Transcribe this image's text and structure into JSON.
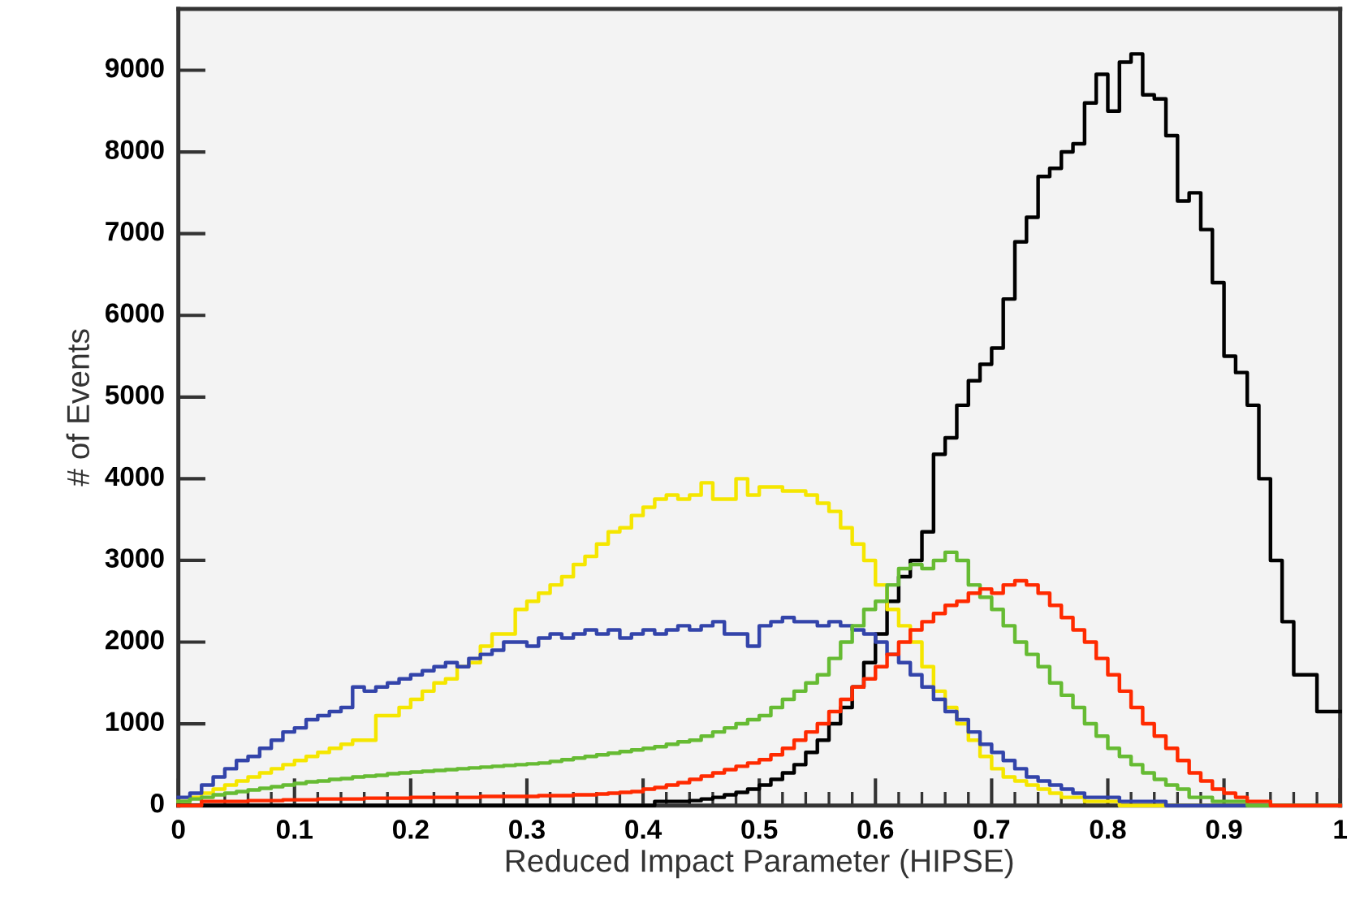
{
  "chart_data": {
    "type": "histogram",
    "xlabel": "Reduced Impact Parameter (HIPSE)",
    "ylabel": "# of Events",
    "bins": [
      0,
      0.01,
      0.02,
      0.03,
      0.04,
      0.05,
      0.06,
      0.07,
      0.08,
      0.09,
      0.1,
      0.11,
      0.12,
      0.13,
      0.14,
      0.15,
      0.16,
      0.17,
      0.18,
      0.19,
      0.2,
      0.21,
      0.22,
      0.23,
      0.24,
      0.25,
      0.26,
      0.27,
      0.28,
      0.29,
      0.3,
      0.31,
      0.32,
      0.33,
      0.34,
      0.35,
      0.36,
      0.37,
      0.38,
      0.39,
      0.4,
      0.41,
      0.42,
      0.43,
      0.44,
      0.45,
      0.46,
      0.47,
      0.48,
      0.49,
      0.5,
      0.51,
      0.52,
      0.53,
      0.54,
      0.55,
      0.56,
      0.57,
      0.58,
      0.59,
      0.6,
      0.61,
      0.62,
      0.63,
      0.64,
      0.65,
      0.66,
      0.67,
      0.68,
      0.69,
      0.7,
      0.71,
      0.72,
      0.73,
      0.74,
      0.75,
      0.76,
      0.77,
      0.78,
      0.79,
      0.8,
      0.81,
      0.82,
      0.83,
      0.84,
      0.85,
      0.86,
      0.87,
      0.88,
      0.89,
      0.9,
      0.91,
      0.92,
      0.93,
      0.94,
      0.95,
      0.96,
      0.97,
      0.98,
      0.99,
      1
    ],
    "series": [
      {
        "color": "#000000",
        "values": [
          0,
          0,
          0,
          0,
          0,
          0,
          0,
          0,
          0,
          0,
          0,
          0,
          0,
          0,
          0,
          0,
          0,
          0,
          0,
          0,
          0,
          0,
          0,
          0,
          0,
          0,
          0,
          0,
          0,
          0,
          0,
          0,
          0,
          0,
          0,
          0,
          0,
          0,
          0,
          0,
          0,
          50,
          50,
          50,
          60,
          80,
          100,
          130,
          160,
          200,
          250,
          320,
          400,
          500,
          650,
          800,
          1000,
          1200,
          1450,
          1750,
          2100,
          2500,
          2800,
          3000,
          3350,
          4300,
          4500,
          4900,
          5200,
          5400,
          5600,
          6200,
          6900,
          7200,
          7700,
          7800,
          8000,
          8100,
          8600,
          8950,
          8500,
          9100,
          9200,
          8700,
          8650,
          8200,
          7400,
          7500,
          7050,
          6400,
          5500,
          5300,
          4900,
          4000,
          3000,
          2250,
          1600,
          1600,
          1150,
          1150
        ]
      },
      {
        "color": "#f5e600",
        "values": [
          50,
          100,
          150,
          200,
          250,
          300,
          350,
          400,
          450,
          500,
          550,
          600,
          650,
          700,
          750,
          800,
          800,
          1100,
          1100,
          1200,
          1300,
          1400,
          1500,
          1550,
          1700,
          1750,
          1950,
          2100,
          2100,
          2400,
          2500,
          2600,
          2700,
          2800,
          2950,
          3050,
          3200,
          3350,
          3400,
          3550,
          3650,
          3750,
          3800,
          3750,
          3800,
          3950,
          3750,
          3750,
          4000,
          3800,
          3900,
          3900,
          3850,
          3850,
          3800,
          3700,
          3600,
          3400,
          3200,
          3000,
          2700,
          2400,
          2200,
          2000,
          1700,
          1400,
          1200,
          1000,
          800,
          600,
          450,
          350,
          300,
          250,
          200,
          150,
          100,
          100,
          50,
          50,
          50,
          0,
          0,
          0,
          0,
          0,
          0,
          0,
          0,
          0,
          0,
          0,
          0,
          0,
          0,
          0,
          0,
          0,
          0,
          0
        ]
      },
      {
        "color": "#3344aa",
        "values": [
          100,
          150,
          250,
          350,
          450,
          550,
          600,
          700,
          800,
          900,
          950,
          1050,
          1100,
          1150,
          1200,
          1450,
          1400,
          1450,
          1500,
          1550,
          1600,
          1650,
          1700,
          1750,
          1700,
          1800,
          1850,
          1900,
          2000,
          2000,
          1950,
          2050,
          2100,
          2050,
          2100,
          2150,
          2100,
          2150,
          2050,
          2100,
          2150,
          2100,
          2150,
          2200,
          2150,
          2200,
          2250,
          2100,
          2100,
          1950,
          2200,
          2250,
          2300,
          2250,
          2250,
          2200,
          2250,
          2200,
          2150,
          2100,
          2000,
          1850,
          1750,
          1600,
          1450,
          1300,
          1150,
          1050,
          900,
          750,
          650,
          550,
          450,
          350,
          300,
          250,
          200,
          150,
          100,
          100,
          100,
          50,
          50,
          50,
          50,
          0,
          0,
          0,
          0,
          0,
          0,
          0,
          0,
          0,
          0,
          0,
          0,
          0,
          0,
          0
        ]
      },
      {
        "color": "#66bb33",
        "values": [
          50,
          80,
          100,
          130,
          150,
          170,
          190,
          210,
          230,
          250,
          270,
          290,
          300,
          320,
          330,
          350,
          360,
          370,
          390,
          400,
          410,
          420,
          430,
          440,
          450,
          460,
          470,
          480,
          490,
          500,
          510,
          520,
          540,
          560,
          580,
          600,
          620,
          640,
          660,
          680,
          700,
          720,
          750,
          780,
          800,
          850,
          900,
          950,
          1000,
          1050,
          1100,
          1200,
          1300,
          1400,
          1500,
          1600,
          1800,
          2000,
          2200,
          2400,
          2500,
          2700,
          2900,
          2950,
          2900,
          3000,
          3100,
          3000,
          2700,
          2550,
          2400,
          2200,
          2000,
          1850,
          1700,
          1500,
          1350,
          1200,
          1000,
          850,
          700,
          600,
          500,
          400,
          320,
          250,
          200,
          100,
          100,
          50,
          50,
          50,
          0,
          0,
          0,
          0,
          0,
          0,
          0,
          0
        ]
      },
      {
        "color": "#ff2a00",
        "values": [
          0,
          0,
          50,
          50,
          50,
          50,
          60,
          60,
          60,
          70,
          70,
          70,
          80,
          80,
          80,
          80,
          90,
          90,
          90,
          90,
          100,
          100,
          100,
          100,
          100,
          100,
          110,
          110,
          110,
          110,
          110,
          120,
          120,
          120,
          130,
          130,
          140,
          150,
          160,
          170,
          200,
          220,
          250,
          280,
          320,
          360,
          400,
          440,
          480,
          520,
          560,
          620,
          700,
          800,
          900,
          1000,
          1150,
          1300,
          1450,
          1550,
          1700,
          1850,
          2000,
          2150,
          2250,
          2350,
          2450,
          2500,
          2600,
          2650,
          2600,
          2700,
          2750,
          2700,
          2600,
          2450,
          2300,
          2150,
          2000,
          1800,
          1600,
          1400,
          1200,
          1000,
          850,
          700,
          550,
          400,
          300,
          200,
          150,
          100,
          50,
          50,
          0,
          0,
          0,
          0,
          0,
          0
        ]
      }
    ],
    "xlim": [
      0,
      1
    ],
    "ylim": [
      0,
      9750
    ],
    "xticks": [
      0,
      {
        "value": 0.1,
        "label": "0.1"
      },
      {
        "value": 0.2,
        "label": "0.2"
      },
      {
        "value": 0.3,
        "label": "0.3"
      },
      {
        "value": 0.4,
        "label": "0.4"
      },
      {
        "value": 0.5,
        "label": "0.5"
      },
      {
        "value": 0.6,
        "label": "0.6"
      },
      {
        "value": 0.7,
        "label": "0.7"
      },
      {
        "value": 0.8,
        "label": "0.8"
      },
      {
        "value": 0.9,
        "label": "0.9"
      },
      1
    ],
    "yticks": [
      0,
      1000,
      2000,
      3000,
      4000,
      5000,
      6000,
      7000,
      8000,
      9000
    ],
    "grid": false,
    "legend": false
  }
}
